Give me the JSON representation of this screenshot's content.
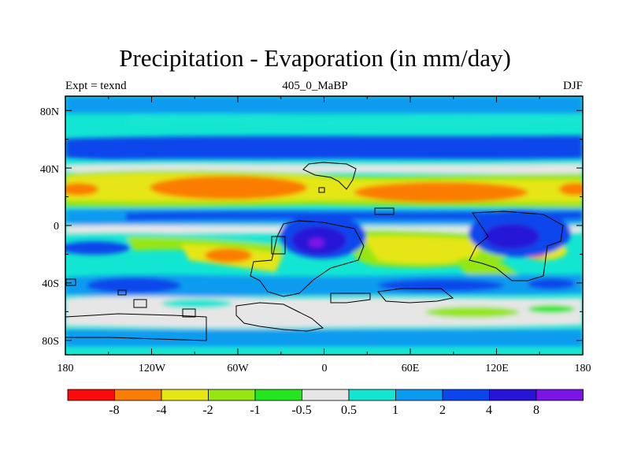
{
  "title": "Precipitation - Evaporation (in mm/day)",
  "left_label": "Expt = texnd",
  "center_label": "405_0_MaBP",
  "right_label": "DJF",
  "map": {
    "y_ticks": [
      "80N",
      "40N",
      "0",
      "40S",
      "80S"
    ],
    "x_ticks": [
      "180",
      "120W",
      "60W",
      "0",
      "60E",
      "120E",
      "180"
    ],
    "lon_range": [
      -180,
      180
    ],
    "lat_range": [
      -90,
      90
    ]
  },
  "colorbar": {
    "labels": [
      "-8",
      "-4",
      "-2",
      "-1",
      "-0.5",
      "0.5",
      "1",
      "2",
      "4",
      "8"
    ],
    "colors": [
      "#fa0a0a",
      "#fa7d05",
      "#e6e614",
      "#96e614",
      "#23e61e",
      "#e6e6e6",
      "#12e6d2",
      "#0a9bf0",
      "#0a46eb",
      "#2814d7",
      "#7d14e6"
    ]
  }
}
